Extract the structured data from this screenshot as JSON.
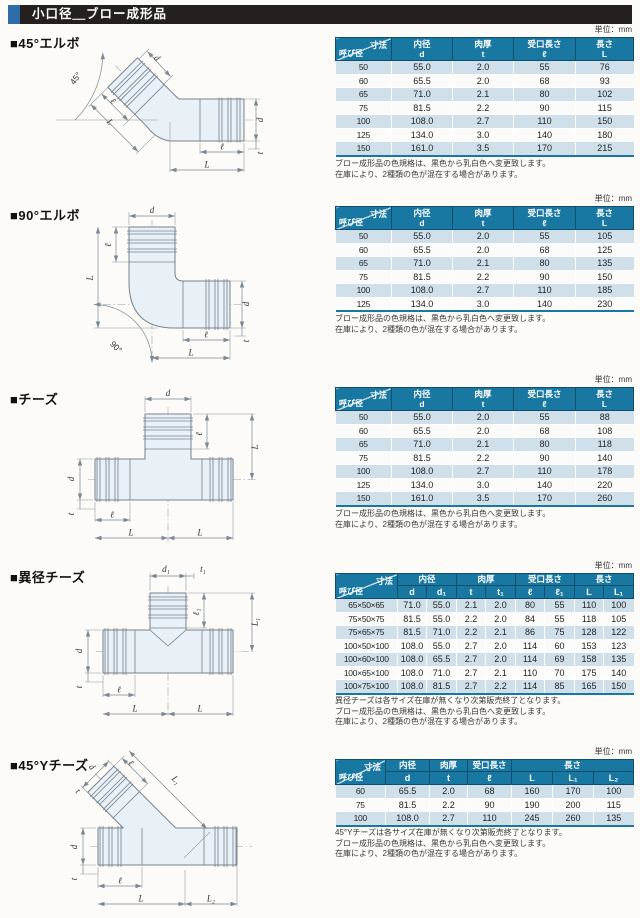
{
  "page": {
    "title": "小口径＿ブロー成形品"
  },
  "colors": {
    "header_bg": "#1878a2",
    "header_border": "#114e6e",
    "stripe": "#cfe0ea",
    "accent": "#2e6da8",
    "title_bar_bg": "#25201e"
  },
  "sections": [
    {
      "heading": "■45°エルボ",
      "unit": "単位：mm",
      "drawing": {
        "labels": {
          "angle": "45°",
          "d": "d",
          "t": "t",
          "ell": "ℓ",
          "L": "L"
        }
      },
      "table": {
        "corner": {
          "top": "寸法",
          "bottom": "呼び径"
        },
        "columns": [
          {
            "label": "内径",
            "subs": [
              "d"
            ]
          },
          {
            "label": "肉厚",
            "subs": [
              "t"
            ]
          },
          {
            "label": "受口長さ",
            "subs": [
              "ℓ"
            ]
          },
          {
            "label": "長さ",
            "subs": [
              "L"
            ]
          }
        ],
        "rows": [
          [
            "50",
            "55.0",
            "2.0",
            "55",
            "76"
          ],
          [
            "60",
            "65.5",
            "2.0",
            "68",
            "93"
          ],
          [
            "65",
            "71.0",
            "2.1",
            "80",
            "102"
          ],
          [
            "75",
            "81.5",
            "2.2",
            "90",
            "115"
          ],
          [
            "100",
            "108.0",
            "2.7",
            "110",
            "150"
          ],
          [
            "125",
            "134.0",
            "3.0",
            "140",
            "180"
          ],
          [
            "150",
            "161.0",
            "3.5",
            "170",
            "215"
          ]
        ]
      },
      "notes": [
        "ブロー成形品の色規格は、黒色から乳白色へ変更致します。",
        "在庫により、2種類の色が混在する場合があります。"
      ]
    },
    {
      "heading": "■90°エルボ",
      "unit": "単位：mm",
      "drawing": {
        "labels": {
          "angle": "90°",
          "d": "d",
          "t": "t",
          "ell": "ℓ",
          "L": "L"
        }
      },
      "table": {
        "corner": {
          "top": "寸法",
          "bottom": "呼び径"
        },
        "columns": [
          {
            "label": "内径",
            "subs": [
              "d"
            ]
          },
          {
            "label": "肉厚",
            "subs": [
              "t"
            ]
          },
          {
            "label": "受口長さ",
            "subs": [
              "ℓ"
            ]
          },
          {
            "label": "長さ",
            "subs": [
              "L"
            ]
          }
        ],
        "rows": [
          [
            "50",
            "55.0",
            "2.0",
            "55",
            "105"
          ],
          [
            "60",
            "65.5",
            "2.0",
            "68",
            "125"
          ],
          [
            "65",
            "71.0",
            "2.1",
            "80",
            "135"
          ],
          [
            "75",
            "81.5",
            "2.2",
            "90",
            "150"
          ],
          [
            "100",
            "108.0",
            "2.7",
            "110",
            "185"
          ],
          [
            "125",
            "134.0",
            "3.0",
            "140",
            "230"
          ]
        ]
      },
      "notes": [
        "ブロー成形品の色規格は、黒色から乳白色へ変更致します。",
        "在庫により、2種類の色が混在する場合があります。"
      ]
    },
    {
      "heading": "■チーズ",
      "unit": "単位：mm",
      "drawing": {
        "labels": {
          "d": "d",
          "t": "t",
          "ell": "ℓ",
          "L": "L"
        }
      },
      "table": {
        "corner": {
          "top": "寸法",
          "bottom": "呼び径"
        },
        "columns": [
          {
            "label": "内径",
            "subs": [
              "d"
            ]
          },
          {
            "label": "肉厚",
            "subs": [
              "t"
            ]
          },
          {
            "label": "受口長さ",
            "subs": [
              "ℓ"
            ]
          },
          {
            "label": "長さ",
            "subs": [
              "L"
            ]
          }
        ],
        "rows": [
          [
            "50",
            "55.0",
            "2.0",
            "55",
            "88"
          ],
          [
            "60",
            "65.5",
            "2.0",
            "68",
            "108"
          ],
          [
            "65",
            "71.0",
            "2.1",
            "80",
            "118"
          ],
          [
            "75",
            "81.5",
            "2.2",
            "90",
            "140"
          ],
          [
            "100",
            "108.0",
            "2.7",
            "110",
            "178"
          ],
          [
            "125",
            "134.0",
            "3.0",
            "140",
            "220"
          ],
          [
            "150",
            "161.0",
            "3.5",
            "170",
            "260"
          ]
        ]
      },
      "notes": [
        "ブロー成形品の色規格は、黒色から乳白色へ変更致します。",
        "在庫により、2種類の色が混在する場合があります。"
      ]
    },
    {
      "heading": "■異径チーズ",
      "unit": "単位：mm",
      "drawing": {
        "labels": {
          "d": "d",
          "d1": "d₁",
          "t": "t",
          "t1": "t₁",
          "ell": "ℓ",
          "ell1": "ℓ₁",
          "L": "L",
          "L1": "L₁"
        }
      },
      "table": {
        "corner": {
          "top": "寸法",
          "bottom": "呼び径"
        },
        "columns": [
          {
            "label": "内径",
            "subs": [
              "d",
              "d₁"
            ]
          },
          {
            "label": "肉厚",
            "subs": [
              "t",
              "t₁"
            ]
          },
          {
            "label": "受口長さ",
            "subs": [
              "ℓ",
              "ℓ₁"
            ]
          },
          {
            "label": "長さ",
            "subs": [
              "L",
              "L₁"
            ]
          }
        ],
        "rows": [
          [
            "65×50×65",
            "71.0",
            "55.0",
            "2.1",
            "2.0",
            "80",
            "55",
            "110",
            "100"
          ],
          [
            "75×50×75",
            "81.5",
            "55.0",
            "2.2",
            "2.0",
            "84",
            "55",
            "118",
            "105"
          ],
          [
            "75×65×75",
            "81.5",
            "71.0",
            "2.2",
            "2.1",
            "86",
            "75",
            "128",
            "122"
          ],
          [
            "100×50×100",
            "108.0",
            "55.0",
            "2.7",
            "2.0",
            "114",
            "60",
            "153",
            "123"
          ],
          [
            "100×60×100",
            "108.0",
            "65.5",
            "2.7",
            "2.0",
            "114",
            "69",
            "158",
            "135"
          ],
          [
            "100×65×100",
            "108.0",
            "71.0",
            "2.7",
            "2.1",
            "110",
            "70",
            "175",
            "140"
          ],
          [
            "100×75×100",
            "108.0",
            "81.5",
            "2.7",
            "2.2",
            "114",
            "85",
            "165",
            "150"
          ]
        ]
      },
      "notes": [
        "異径チーズは各サイズ在庫が無くなり次第販売終了となります。",
        "ブロー成形品の色規格は、黒色から乳白色へ変更致します。",
        "在庫により、2種類の色が混在する場合があります。"
      ]
    },
    {
      "heading": "■45°Yチーズ",
      "unit": "単位：mm",
      "drawing": {
        "labels": {
          "d": "d",
          "t": "t",
          "ell": "ℓ",
          "L": "L",
          "L1": "L₁",
          "L2": "L₂"
        }
      },
      "table": {
        "corner": {
          "top": "寸法",
          "bottom": "呼び径"
        },
        "columns": [
          {
            "label": "内径",
            "subs": [
              "d"
            ]
          },
          {
            "label": "肉厚",
            "subs": [
              "t"
            ]
          },
          {
            "label": "受口長さ",
            "subs": [
              "ℓ"
            ]
          },
          {
            "label": "長さ",
            "subs": [
              "L",
              "L₁",
              "L₂"
            ]
          }
        ],
        "rows": [
          [
            "60",
            "65.5",
            "2.0",
            "68",
            "160",
            "170",
            "100"
          ],
          [
            "75",
            "81.5",
            "2.2",
            "90",
            "190",
            "200",
            "115"
          ],
          [
            "100",
            "108.0",
            "2.7",
            "110",
            "245",
            "260",
            "135"
          ]
        ]
      },
      "notes": [
        "45°Yチーズは各サイズ在庫が無くなり次第販売終了となります。",
        "ブロー成形品の色規格は、黒色から乳白色へ変更致します。",
        "在庫により、2種類の色が混在する場合があります。"
      ]
    }
  ]
}
